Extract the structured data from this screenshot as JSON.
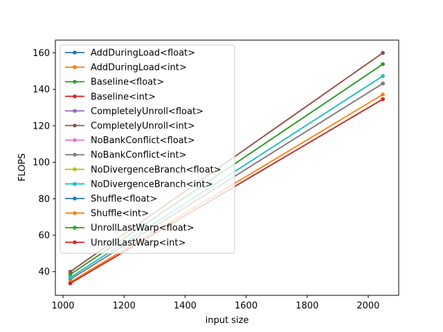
{
  "chart_data": {
    "type": "line",
    "title": "",
    "xlabel": "input size",
    "ylabel": "FLOPS",
    "xlim": [
      975,
      2100
    ],
    "ylim": [
      27,
      167
    ],
    "xticks": [
      1000,
      1200,
      1400,
      1600,
      1800,
      2000
    ],
    "yticks": [
      40,
      60,
      80,
      100,
      120,
      140,
      160
    ],
    "grid": false,
    "legend_position": "upper-left",
    "x": [
      1024,
      2048
    ],
    "series": [
      {
        "name": "AddDuringLoad<float>",
        "color": "#1f77b4",
        "values": [
          38.5,
          153.8
        ]
      },
      {
        "name": "AddDuringLoad<int>",
        "color": "#ff7f0e",
        "values": [
          38.5,
          153.8
        ]
      },
      {
        "name": "Baseline<float>",
        "color": "#2ca02c",
        "values": [
          38.5,
          153.8
        ]
      },
      {
        "name": "Baseline<int>",
        "color": "#d62728",
        "values": [
          40.0,
          160.0
        ]
      },
      {
        "name": "CompletelyUnroll<float>",
        "color": "#9467bd",
        "values": [
          35.8,
          143.2
        ]
      },
      {
        "name": "CompletelyUnroll<int>",
        "color": "#8c564b",
        "values": [
          40.0,
          160.0
        ]
      },
      {
        "name": "NoBankConflict<float>",
        "color": "#e377c2",
        "values": [
          35.8,
          143.2
        ]
      },
      {
        "name": "NoBankConflict<int>",
        "color": "#7f7f7f",
        "values": [
          35.8,
          143.2
        ]
      },
      {
        "name": "NoDivergenceBranch<float>",
        "color": "#bcbd22",
        "values": [
          36.8,
          147.3
        ]
      },
      {
        "name": "NoDivergenceBranch<int>",
        "color": "#17becf",
        "values": [
          36.8,
          147.3
        ]
      },
      {
        "name": "Shuffle<float>",
        "color": "#1f77b4",
        "values": [
          33.6,
          134.6
        ]
      },
      {
        "name": "Shuffle<int>",
        "color": "#ff7f0e",
        "values": [
          34.3,
          137.2
        ]
      },
      {
        "name": "UnrollLastWarp<float>",
        "color": "#2ca02c",
        "values": [
          33.6,
          134.6
        ]
      },
      {
        "name": "UnrollLastWarp<int>",
        "color": "#d62728",
        "values": [
          33.6,
          134.6
        ]
      }
    ]
  }
}
